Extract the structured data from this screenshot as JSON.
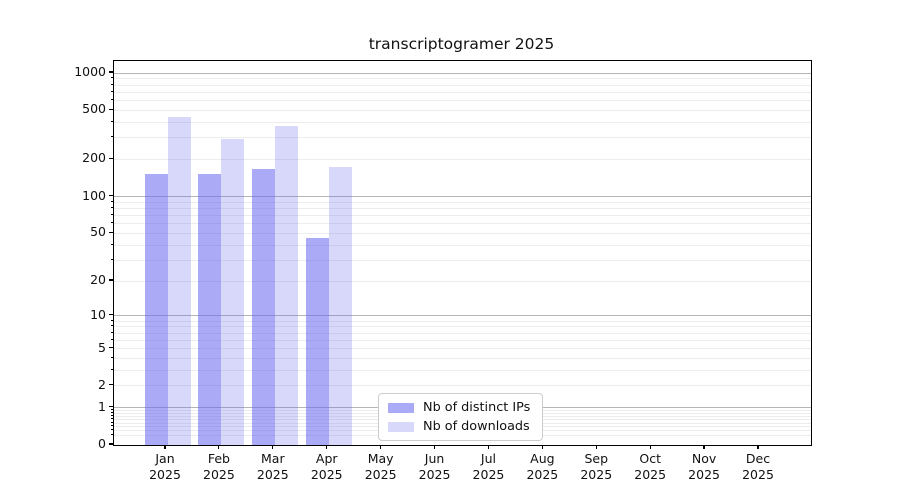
{
  "chart_data": {
    "type": "bar",
    "title": "transcriptogramer 2025",
    "categories": [
      "Jan",
      "Feb",
      "Mar",
      "Apr",
      "May",
      "Jun",
      "Jul",
      "Aug",
      "Sep",
      "Oct",
      "Nov",
      "Dec"
    ],
    "year_label": "2025",
    "series": [
      {
        "name": "Nb of distinct IPs",
        "color": "rgba(100,100,240,0.55)",
        "values": [
          152,
          152,
          167,
          46,
          null,
          null,
          null,
          null,
          null,
          null,
          null,
          null
        ]
      },
      {
        "name": "Nb of downloads",
        "color": "rgba(100,100,240,0.25)",
        "values": [
          440,
          295,
          375,
          173,
          null,
          null,
          null,
          null,
          null,
          null,
          null,
          null
        ]
      }
    ],
    "xlabel": "",
    "ylabel": "",
    "yscale": "log1p",
    "ylim": [
      0,
      1250
    ],
    "yticks": [
      0,
      1,
      2,
      5,
      10,
      20,
      50,
      100,
      200,
      500,
      1000
    ],
    "major_grid_values": [
      1,
      10,
      100,
      1000
    ],
    "grid": true,
    "legend_position": "inside-lower-center",
    "colors": {
      "major_grid": "#b5b5b5",
      "minor_grid": "#ececec",
      "spine": "#000000",
      "text": "#111111",
      "background": "#ffffff"
    }
  }
}
